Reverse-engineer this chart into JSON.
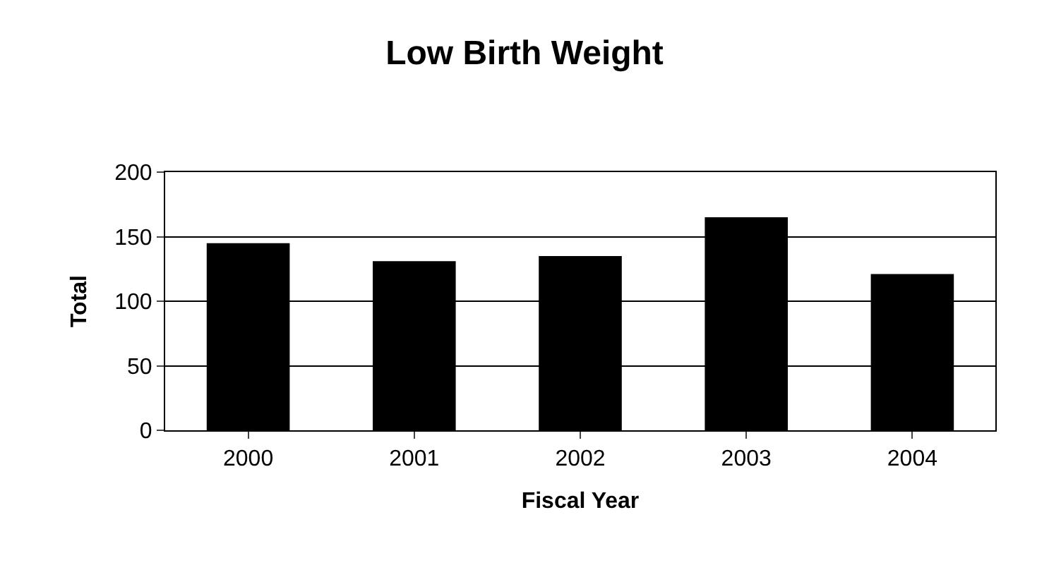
{
  "chart_data": {
    "type": "bar",
    "title": "Low Birth Weight",
    "xlabel": "Fiscal Year",
    "ylabel": "Total",
    "categories": [
      "2000",
      "2001",
      "2002",
      "2003",
      "2004"
    ],
    "values": [
      145,
      131,
      135,
      165,
      121
    ],
    "color": "#000000",
    "ylim": [
      0,
      200
    ],
    "yticks": [
      0,
      50,
      100,
      150,
      200
    ],
    "grid": "y"
  }
}
